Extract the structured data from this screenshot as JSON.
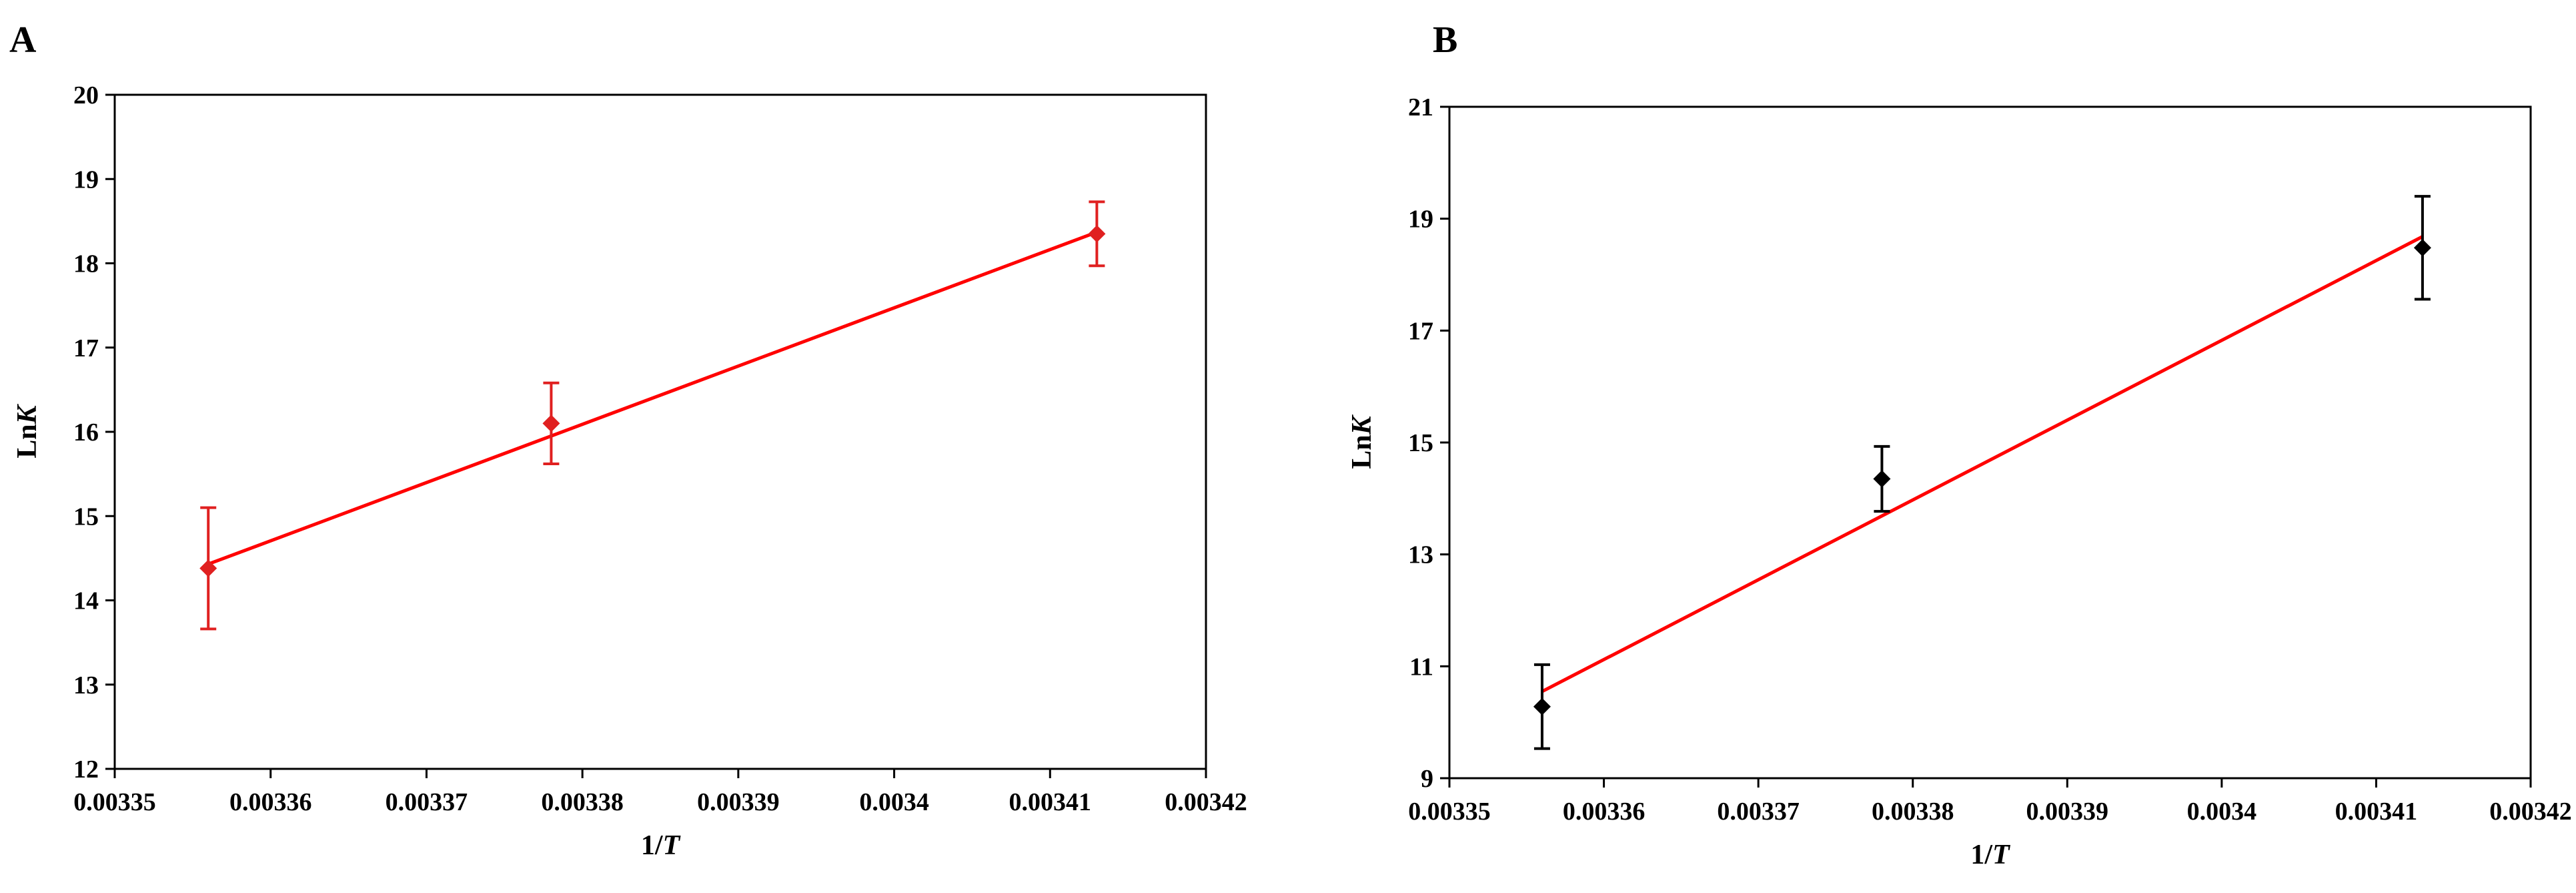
{
  "chart_data": [
    {
      "panel_label": "A",
      "type": "scatter",
      "xlabel_main": "1/",
      "xlabel_italic": "T",
      "ylabel_main": "Ln",
      "ylabel_italic": "K",
      "xlim": [
        0.00335,
        0.00342
      ],
      "ylim": [
        12,
        20
      ],
      "x_ticks": [
        0.00335,
        0.00336,
        0.00337,
        0.00338,
        0.00339,
        0.0034,
        0.00341,
        0.00342
      ],
      "x_tick_labels": [
        "0.00335",
        "0.00336",
        "0.00337",
        "0.00338",
        "0.00339",
        "0.0034",
        "0.00341",
        "0.00342"
      ],
      "y_ticks": [
        12,
        13,
        14,
        15,
        16,
        17,
        18,
        19,
        20
      ],
      "y_tick_labels": [
        "12",
        "13",
        "14",
        "15",
        "16",
        "17",
        "18",
        "19",
        "20"
      ],
      "grid": false,
      "marker_color": "#e02020",
      "errorbar_color": "#e02020",
      "fit_color": "#ff0000",
      "points": [
        {
          "x": 0.003356,
          "y": 14.38,
          "err": 0.72
        },
        {
          "x": 0.003378,
          "y": 16.1,
          "err": 0.48
        },
        {
          "x": 0.003413,
          "y": 18.35,
          "err": 0.38
        }
      ],
      "fit_line": {
        "x": [
          0.003356,
          0.003413
        ],
        "y": [
          14.43,
          18.37
        ]
      }
    },
    {
      "panel_label": "B",
      "type": "scatter",
      "xlabel_main": "1/",
      "xlabel_italic": "T",
      "ylabel_main": "Ln",
      "ylabel_italic": "K",
      "xlim": [
        0.00335,
        0.00342
      ],
      "ylim": [
        9,
        21
      ],
      "x_ticks": [
        0.00335,
        0.00336,
        0.00337,
        0.00338,
        0.00339,
        0.0034,
        0.00341,
        0.00342
      ],
      "x_tick_labels": [
        "0.00335",
        "0.00336",
        "0.00337",
        "0.00338",
        "0.00339",
        "0.0034",
        "0.00341",
        "0.00342"
      ],
      "y_ticks": [
        9,
        11,
        13,
        15,
        17,
        19,
        21
      ],
      "y_tick_labels": [
        "9",
        "11",
        "13",
        "15",
        "17",
        "19",
        "21"
      ],
      "grid": false,
      "marker_color": "#000000",
      "errorbar_color": "#000000",
      "fit_color": "#ff0000",
      "points": [
        {
          "x": 0.003356,
          "y": 10.28,
          "err": 0.75
        },
        {
          "x": 0.003378,
          "y": 14.35,
          "err": 0.58
        },
        {
          "x": 0.003413,
          "y": 18.48,
          "err": 0.92
        }
      ],
      "fit_line": {
        "x": [
          0.003356,
          0.003413
        ],
        "y": [
          10.55,
          18.68
        ]
      }
    }
  ]
}
